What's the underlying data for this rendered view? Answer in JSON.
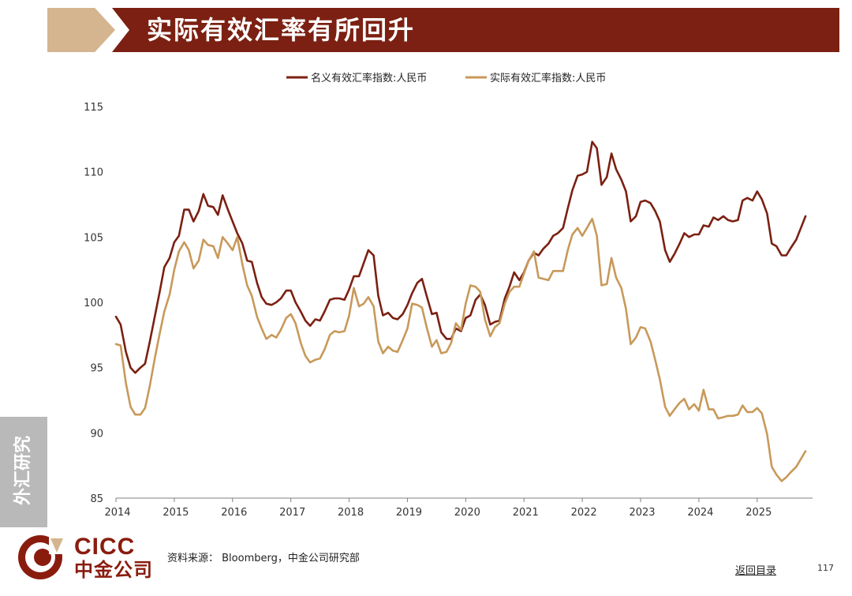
{
  "header": {
    "title": "实际有效汇率有所回升"
  },
  "side_tab": {
    "label": "外汇研究"
  },
  "logo": {
    "en": "CICC",
    "cn": "中金公司"
  },
  "footer": {
    "source": "资料来源： Bloomberg，中金公司研究部",
    "toc_link": "返回目录",
    "page_number": "117"
  },
  "colors": {
    "nominal": "#7b2012",
    "real": "#c8995a",
    "header": "#7b2012",
    "header_accent": "#d4b58f"
  },
  "chart_data": {
    "type": "line",
    "title": "",
    "xlabel": "",
    "ylabel": "",
    "ylim": [
      85,
      115
    ],
    "yticks": [
      "85",
      "90",
      "95",
      "100",
      "105",
      "110",
      "115"
    ],
    "xlim": [
      2014,
      2025.95
    ],
    "xticks": [
      "2014",
      "2015",
      "2016",
      "2017",
      "2018",
      "2019",
      "2020",
      "2021",
      "2022",
      "2023",
      "2024",
      "2025"
    ],
    "legend": "top-center",
    "series": [
      {
        "name": "名义有效汇率指数:人民币",
        "color": "#7b2012",
        "x": [
          2014.0,
          2014.08,
          2014.17,
          2014.25,
          2014.33,
          2014.42,
          2014.5,
          2014.58,
          2014.67,
          2014.75,
          2014.83,
          2014.92,
          2015.0,
          2015.08,
          2015.17,
          2015.25,
          2015.33,
          2015.42,
          2015.5,
          2015.58,
          2015.67,
          2015.75,
          2015.83,
          2015.92,
          2016.0,
          2016.08,
          2016.17,
          2016.25,
          2016.33,
          2016.42,
          2016.5,
          2016.58,
          2016.67,
          2016.75,
          2016.83,
          2016.92,
          2017.0,
          2017.08,
          2017.17,
          2017.25,
          2017.33,
          2017.42,
          2017.5,
          2017.58,
          2017.67,
          2017.75,
          2017.83,
          2017.92,
          2018.0,
          2018.08,
          2018.17,
          2018.25,
          2018.33,
          2018.42,
          2018.5,
          2018.58,
          2018.67,
          2018.75,
          2018.83,
          2018.92,
          2019.0,
          2019.08,
          2019.17,
          2019.25,
          2019.33,
          2019.42,
          2019.5,
          2019.58,
          2019.67,
          2019.75,
          2019.83,
          2019.92,
          2020.0,
          2020.08,
          2020.17,
          2020.25,
          2020.33,
          2020.42,
          2020.5,
          2020.58,
          2020.67,
          2020.75,
          2020.83,
          2020.92,
          2021.0,
          2021.08,
          2021.17,
          2021.25,
          2021.33,
          2021.42,
          2021.5,
          2021.58,
          2021.67,
          2021.75,
          2021.83,
          2021.92,
          2022.0,
          2022.08,
          2022.17,
          2022.25,
          2022.33,
          2022.42,
          2022.5,
          2022.58,
          2022.67,
          2022.75,
          2022.83,
          2022.92,
          2023.0,
          2023.08,
          2023.17,
          2023.25,
          2023.33,
          2023.42,
          2023.5,
          2023.58,
          2023.67,
          2023.75,
          2023.83,
          2023.92,
          2024.0,
          2024.08,
          2024.17,
          2024.25,
          2024.33,
          2024.42,
          2024.5,
          2024.58,
          2024.67,
          2024.75,
          2024.83,
          2024.92,
          2025.0,
          2025.08,
          2025.17,
          2025.25,
          2025.33,
          2025.42,
          2025.5,
          2025.58,
          2025.67,
          2025.75,
          2025.83
        ],
        "values": [
          98.9,
          98.3,
          96.2,
          95.0,
          94.6,
          95.0,
          95.3,
          97.0,
          99.0,
          100.8,
          102.7,
          103.4,
          104.6,
          105.1,
          107.1,
          107.1,
          106.2,
          107.0,
          108.3,
          107.4,
          107.3,
          106.7,
          108.2,
          107.1,
          106.2,
          105.3,
          104.5,
          103.2,
          103.1,
          101.5,
          100.4,
          99.9,
          99.8,
          100.0,
          100.3,
          100.9,
          100.9,
          100.0,
          99.3,
          98.6,
          98.2,
          98.7,
          98.6,
          99.3,
          100.2,
          100.3,
          100.3,
          100.2,
          101.0,
          102.0,
          102.0,
          103.0,
          104.0,
          103.6,
          100.5,
          99.0,
          99.2,
          98.8,
          98.7,
          99.1,
          99.8,
          100.7,
          101.5,
          101.8,
          100.5,
          99.1,
          99.2,
          97.7,
          97.2,
          97.2,
          98.0,
          97.8,
          98.8,
          99.0,
          100.2,
          100.6,
          99.8,
          98.3,
          98.5,
          98.6,
          100.3,
          101.2,
          102.3,
          101.7,
          102.3,
          103.2,
          103.8,
          103.6,
          104.1,
          104.5,
          105.1,
          105.3,
          105.7,
          107.2,
          108.6,
          109.7,
          109.8,
          110.0,
          112.3,
          111.8,
          109.0,
          109.6,
          111.4,
          110.2,
          109.4,
          108.5,
          106.2,
          106.6,
          107.7,
          107.8,
          107.6,
          107.0,
          106.2,
          104.0,
          103.1,
          103.7,
          104.5,
          105.3,
          105.0,
          105.2,
          105.2,
          105.9,
          105.8,
          106.5,
          106.3,
          106.6,
          106.3,
          106.2,
          106.3,
          107.8,
          108.0,
          107.8,
          108.5,
          107.9,
          106.8,
          104.5,
          104.3,
          103.6,
          103.6,
          104.2,
          104.8,
          105.7,
          106.6
        ]
      },
      {
        "name": "实际有效汇率指数:人民币",
        "color": "#c8995a",
        "x": [
          2014.0,
          2014.08,
          2014.17,
          2014.25,
          2014.33,
          2014.42,
          2014.5,
          2014.58,
          2014.67,
          2014.75,
          2014.83,
          2014.92,
          2015.0,
          2015.08,
          2015.17,
          2015.25,
          2015.33,
          2015.42,
          2015.5,
          2015.58,
          2015.67,
          2015.75,
          2015.83,
          2015.92,
          2016.0,
          2016.08,
          2016.17,
          2016.25,
          2016.33,
          2016.42,
          2016.5,
          2016.58,
          2016.67,
          2016.75,
          2016.83,
          2016.92,
          2017.0,
          2017.08,
          2017.17,
          2017.25,
          2017.33,
          2017.42,
          2017.5,
          2017.58,
          2017.67,
          2017.75,
          2017.83,
          2017.92,
          2018.0,
          2018.08,
          2018.17,
          2018.25,
          2018.33,
          2018.42,
          2018.5,
          2018.58,
          2018.67,
          2018.75,
          2018.83,
          2018.92,
          2019.0,
          2019.08,
          2019.17,
          2019.25,
          2019.33,
          2019.42,
          2019.5,
          2019.58,
          2019.67,
          2019.75,
          2019.83,
          2019.92,
          2020.0,
          2020.08,
          2020.17,
          2020.25,
          2020.33,
          2020.42,
          2020.5,
          2020.58,
          2020.67,
          2020.75,
          2020.83,
          2020.92,
          2021.0,
          2021.08,
          2021.17,
          2021.25,
          2021.33,
          2021.42,
          2021.5,
          2021.58,
          2021.67,
          2021.75,
          2021.83,
          2021.92,
          2022.0,
          2022.08,
          2022.17,
          2022.25,
          2022.33,
          2022.42,
          2022.5,
          2022.58,
          2022.67,
          2022.75,
          2022.83,
          2022.92,
          2023.0,
          2023.08,
          2023.17,
          2023.25,
          2023.33,
          2023.42,
          2023.5,
          2023.58,
          2023.67,
          2023.75,
          2023.83,
          2023.92,
          2024.0,
          2024.08,
          2024.17,
          2024.25,
          2024.33,
          2024.42,
          2024.5,
          2024.58,
          2024.67,
          2024.75,
          2024.83,
          2024.92,
          2025.0,
          2025.08,
          2025.17,
          2025.25,
          2025.33,
          2025.42,
          2025.5,
          2025.58,
          2025.67,
          2025.75,
          2025.83
        ],
        "values": [
          96.8,
          96.7,
          93.8,
          92.0,
          91.4,
          91.4,
          91.9,
          93.6,
          95.8,
          97.6,
          99.3,
          100.6,
          102.5,
          103.9,
          104.6,
          104.0,
          102.6,
          103.2,
          104.8,
          104.4,
          104.3,
          103.4,
          105.0,
          104.5,
          104.0,
          105.0,
          102.9,
          101.3,
          100.5,
          98.9,
          98.0,
          97.2,
          97.5,
          97.3,
          97.9,
          98.8,
          99.1,
          98.4,
          96.9,
          95.9,
          95.4,
          95.6,
          95.7,
          96.4,
          97.5,
          97.8,
          97.7,
          97.8,
          99.0,
          101.1,
          99.7,
          99.9,
          100.4,
          99.7,
          97.0,
          96.1,
          96.6,
          96.3,
          96.2,
          97.1,
          98.0,
          99.9,
          99.8,
          99.6,
          98.1,
          96.6,
          97.1,
          96.1,
          96.2,
          96.9,
          98.4,
          97.9,
          99.9,
          101.3,
          101.2,
          100.8,
          98.7,
          97.4,
          98.1,
          98.4,
          99.9,
          100.8,
          101.2,
          101.2,
          102.2,
          103.2,
          103.9,
          101.9,
          101.8,
          101.7,
          102.4,
          102.4,
          102.4,
          104.0,
          105.2,
          105.7,
          105.1,
          105.7,
          106.4,
          105.1,
          101.3,
          101.4,
          103.4,
          101.9,
          101.1,
          99.5,
          96.8,
          97.3,
          98.1,
          98.0,
          97.0,
          95.6,
          94.1,
          92.0,
          91.3,
          91.8,
          92.3,
          92.6,
          91.8,
          92.2,
          91.7,
          93.3,
          91.8,
          91.8,
          91.1,
          91.2,
          91.3,
          91.3,
          91.4,
          92.1,
          91.6,
          91.6,
          91.9,
          91.5,
          89.9,
          87.4,
          86.8,
          86.3,
          86.6,
          87.0,
          87.4,
          88.0,
          88.6
        ]
      }
    ]
  }
}
